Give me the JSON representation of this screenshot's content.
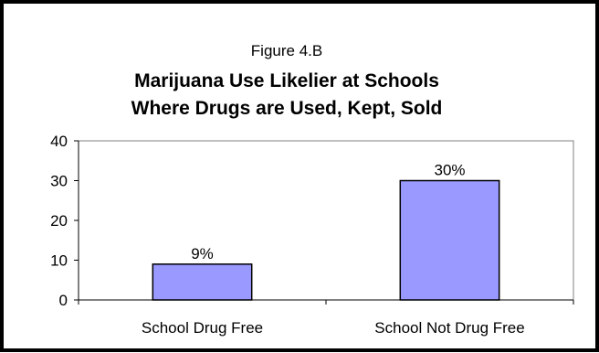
{
  "chart_data": {
    "type": "bar",
    "figure_label": "Figure 4.B",
    "title_lines": [
      "Marijuana Use Likelier at Schools",
      "Where Drugs are Used, Kept, Sold"
    ],
    "categories": [
      "School Drug Free",
      "School Not Drug Free"
    ],
    "values": [
      9,
      30
    ],
    "data_labels": [
      "9%",
      "30%"
    ],
    "xlabel": "",
    "ylabel": "",
    "ylim": [
      0,
      40
    ],
    "yticks": [
      0,
      10,
      20,
      30,
      40
    ],
    "grid": false,
    "legend": "none",
    "bar_color": "#9999ff",
    "bar_border_color": "#000000",
    "plot_border_color": "#808080"
  }
}
